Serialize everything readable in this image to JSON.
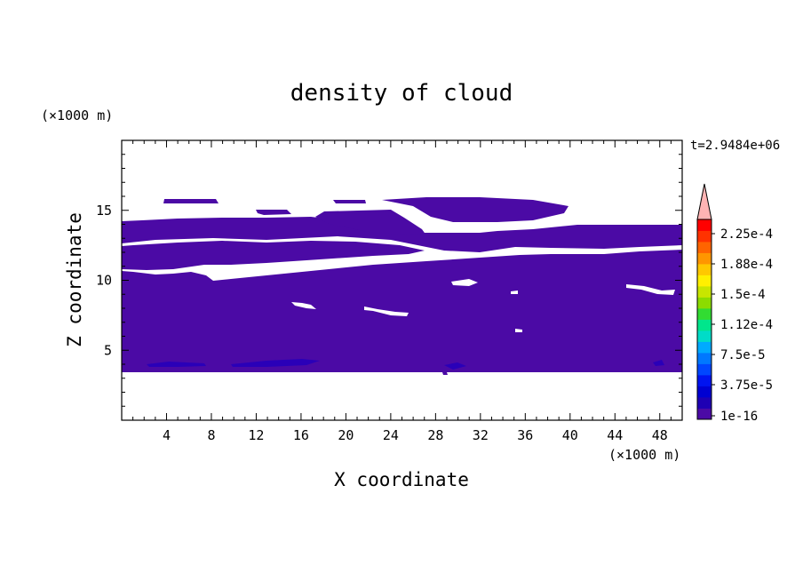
{
  "chart_data": {
    "type": "contour",
    "title": "density of cloud",
    "time_label": "t=2.9484e+06",
    "xlabel": "X coordinate",
    "ylabel": "Z coordinate",
    "x_unit": "(×1000 m)",
    "z_unit": "(×1000 m)",
    "xlim": [
      0,
      50
    ],
    "ylim": [
      0,
      20
    ],
    "x_ticks": [
      4,
      8,
      12,
      16,
      20,
      24,
      28,
      32,
      36,
      40,
      44,
      48
    ],
    "y_ticks": [
      5,
      10,
      15
    ],
    "colorbar": {
      "labels": [
        "2.25e-4",
        "1.88e-4",
        "1.5e-4",
        "1.12e-4",
        "7.5e-5",
        "3.75e-5",
        "1e-16"
      ],
      "colors": [
        "#4b0aa5",
        "#1e00b4",
        "#0000d2",
        "#0014f0",
        "#0046ff",
        "#0078ff",
        "#00aaff",
        "#00dcc8",
        "#00e68c",
        "#32dc32",
        "#8cdc00",
        "#c8e600",
        "#fff000",
        "#ffc800",
        "#ff9600",
        "#ff6400",
        "#ff3200",
        "#ff0000"
      ],
      "over_color": "#ffb4b4"
    },
    "cloud_regions": [
      {
        "x": [
          0,
          50
        ],
        "z": [
          3.5,
          14
        ]
      },
      {
        "x": [
          4,
          8
        ],
        "z": [
          15.2,
          15.7
        ]
      },
      {
        "x": [
          12,
          15
        ],
        "z": [
          14.6,
          15.2
        ]
      },
      {
        "x": [
          18,
          24
        ],
        "z": [
          13.5,
          14.8
        ]
      },
      {
        "x": [
          19,
          21
        ],
        "z": [
          15.1,
          15.7
        ]
      },
      {
        "x": [
          23,
          40
        ],
        "z": [
          14,
          15.8
        ]
      }
    ],
    "dense_spots": [
      {
        "x": 13,
        "z": 4.0,
        "value": 3.75e-05
      },
      {
        "x": 16,
        "z": 4.0,
        "value": 3.75e-05
      },
      {
        "x": 30,
        "z": 3.8,
        "value": 3.75e-05
      },
      {
        "x": 48,
        "z": 4.0,
        "value": 3.75e-05
      }
    ]
  }
}
